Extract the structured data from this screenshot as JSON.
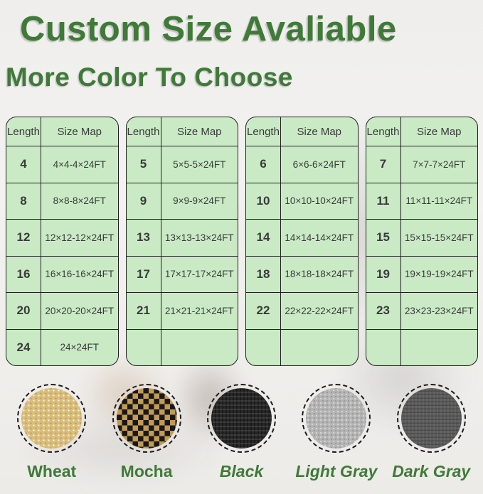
{
  "header": {
    "title": "Custom Size Avaliable",
    "subtitle": "More Color To Choose"
  },
  "tables": [
    {
      "columns": [
        "Length",
        "Size Map"
      ],
      "rows": [
        [
          "4",
          "4×4-4×24FT"
        ],
        [
          "8",
          "8×8-8×24FT"
        ],
        [
          "12",
          "12×12-12×24FT"
        ],
        [
          "16",
          "16×16-16×24FT"
        ],
        [
          "20",
          "20×20-20×24FT"
        ],
        [
          "24",
          "24×24FT"
        ]
      ]
    },
    {
      "columns": [
        "Length",
        "Size Map"
      ],
      "rows": [
        [
          "5",
          "5×5-5×24FT"
        ],
        [
          "9",
          "9×9-9×24FT"
        ],
        [
          "13",
          "13×13-13×24FT"
        ],
        [
          "17",
          "17×17-17×24FT"
        ],
        [
          "21",
          "21×21-21×24FT"
        ],
        [
          "",
          ""
        ]
      ]
    },
    {
      "columns": [
        "Length",
        "Size Map"
      ],
      "rows": [
        [
          "6",
          "6×6-6×24FT"
        ],
        [
          "10",
          "10×10-10×24FT"
        ],
        [
          "14",
          "14×14-14×24FT"
        ],
        [
          "18",
          "18×18-18×24FT"
        ],
        [
          "22",
          "22×22-22×24FT"
        ],
        [
          "",
          ""
        ]
      ]
    },
    {
      "columns": [
        "Length",
        "Size Map"
      ],
      "rows": [
        [
          "7",
          "7×7-7×24FT"
        ],
        [
          "11",
          "11×11-11×24FT"
        ],
        [
          "15",
          "15×15-15×24FT"
        ],
        [
          "19",
          "19×19-19×24FT"
        ],
        [
          "23",
          "23×23-23×24FT"
        ],
        [
          "",
          ""
        ]
      ]
    }
  ],
  "colors": {
    "items": [
      {
        "name": "Wheat",
        "hex": "#d9bd7c",
        "texture": "wheat"
      },
      {
        "name": "Mocha",
        "hex": "#c29a55",
        "texture": "mocha"
      },
      {
        "name": "Black",
        "hex": "#282828",
        "texture": "black"
      },
      {
        "name": "Light Gray",
        "hex": "#b4b4b4",
        "texture": "lightgray"
      },
      {
        "name": "Dark Gray",
        "hex": "#5c5c5c",
        "texture": "darkgray"
      }
    ]
  },
  "theme": {
    "accent_green": "#3f7a39",
    "table_bg": "#c9eac5",
    "table_border": "#1f1f1f",
    "text_dark": "#3a3a3a"
  }
}
